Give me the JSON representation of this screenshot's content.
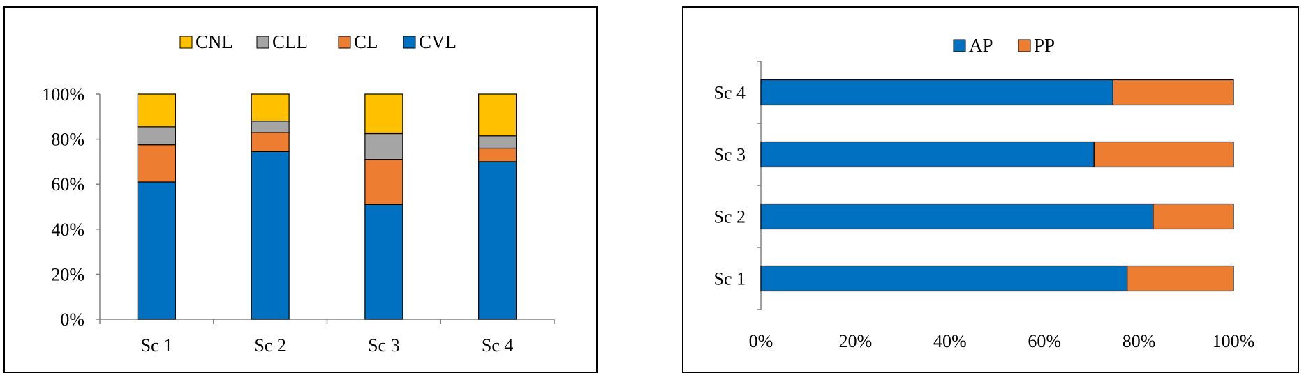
{
  "chart_data": [
    {
      "type": "bar",
      "stacked": true,
      "orientation": "vertical",
      "categories": [
        "Sc 1",
        "Sc 2",
        "Sc 3",
        "Sc 4"
      ],
      "series": [
        {
          "name": "CVL",
          "color": "#0070C0",
          "values": [
            61,
            74.5,
            51,
            70
          ]
        },
        {
          "name": "CL",
          "color": "#ED7D31",
          "values": [
            16.5,
            8.5,
            20,
            6
          ]
        },
        {
          "name": "CLL",
          "color": "#A5A5A5",
          "values": [
            8,
            5,
            11.5,
            5.5
          ]
        },
        {
          "name": "CNL",
          "color": "#FFC000",
          "values": [
            14.5,
            12,
            17.5,
            18.5
          ]
        }
      ],
      "legend_order": [
        "CNL",
        "CLL",
        "CL",
        "CVL"
      ],
      "legend_position": "top",
      "ylim": [
        0,
        100
      ],
      "y_ticks": [
        "0%",
        "20%",
        "40%",
        "60%",
        "80%",
        "100%"
      ],
      "title": "",
      "xlabel": "",
      "ylabel": ""
    },
    {
      "type": "bar",
      "stacked": true,
      "orientation": "horizontal",
      "categories": [
        "Sc 1",
        "Sc 2",
        "Sc 3",
        "Sc 4"
      ],
      "series": [
        {
          "name": "AP",
          "color": "#0070C0",
          "values": [
            77.5,
            83,
            70.5,
            74.5
          ]
        },
        {
          "name": "PP",
          "color": "#ED7D31",
          "values": [
            22.5,
            17,
            29.5,
            25.5
          ]
        }
      ],
      "legend_order": [
        "AP",
        "PP"
      ],
      "legend_position": "top",
      "xlim": [
        0,
        100
      ],
      "x_ticks": [
        "0%",
        "20%",
        "40%",
        "60%",
        "80%",
        "100%"
      ],
      "title": "",
      "xlabel": "",
      "ylabel": ""
    }
  ]
}
